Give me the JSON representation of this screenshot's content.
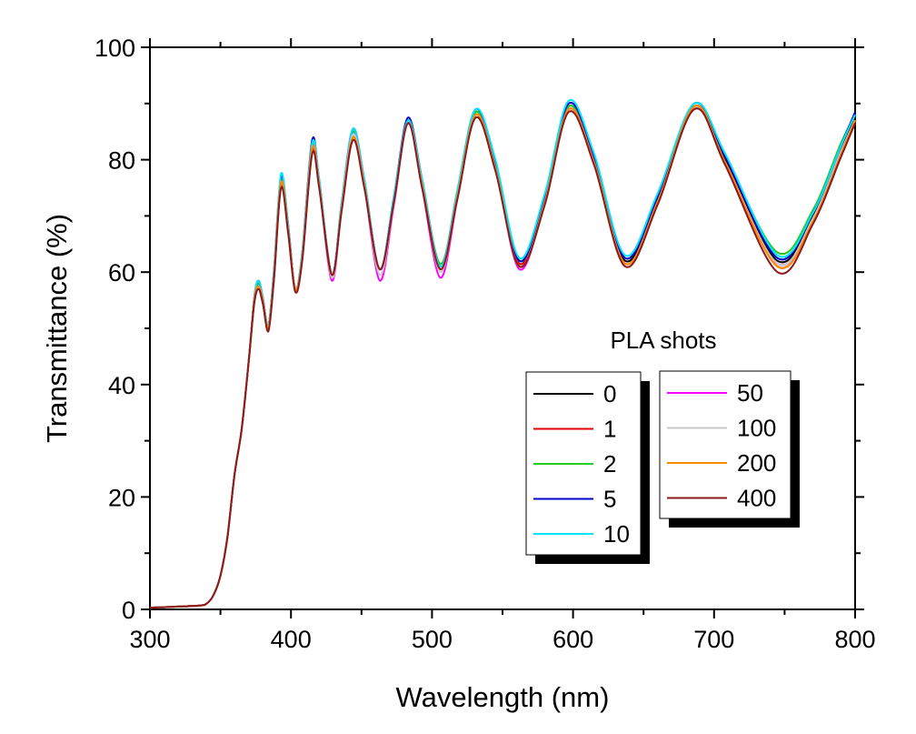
{
  "chart_data": {
    "type": "line",
    "title": "",
    "xlabel": "Wavelength (nm)",
    "ylabel": "Transmittance (%)",
    "xlim": [
      300,
      800
    ],
    "ylim": [
      0,
      100
    ],
    "x_ticks": [
      300,
      400,
      500,
      600,
      700,
      800
    ],
    "y_ticks": [
      0,
      20,
      40,
      60,
      80,
      100
    ],
    "x_tick_labels": [
      "300",
      "400",
      "500",
      "600",
      "700",
      "800"
    ],
    "y_tick_labels": [
      "0",
      "20",
      "40",
      "60",
      "80",
      "100"
    ],
    "grid": false,
    "legend_title": "PLA shots",
    "legend_position": "lower-right",
    "x": [
      300,
      320,
      335,
      340,
      345,
      350,
      355,
      360,
      365,
      370,
      374,
      377,
      380,
      384,
      388,
      393,
      398,
      403,
      408,
      415,
      420,
      429,
      436,
      444,
      452,
      463,
      473,
      483,
      493,
      506,
      518,
      531,
      545,
      562,
      580,
      597,
      615,
      637,
      660,
      686,
      708,
      745,
      770,
      790,
      800
    ],
    "series": [
      {
        "name": "0",
        "color": "#000000",
        "values": [
          0.3,
          0.5,
          0.7,
          1.0,
          2.5,
          6.0,
          13.0,
          24.0,
          32.0,
          44.0,
          55.0,
          58.0,
          55.0,
          50.5,
          60.0,
          76.0,
          68.0,
          57.0,
          63.0,
          82.5,
          76.0,
          59.5,
          72.0,
          85.0,
          76.0,
          60.5,
          73.0,
          87.0,
          76.0,
          61.0,
          74.0,
          88.5,
          79.0,
          61.5,
          73.0,
          89.5,
          80.0,
          62.0,
          73.0,
          89.5,
          80.0,
          62.0,
          70.0,
          82.0,
          88.0
        ]
      },
      {
        "name": "1",
        "color": "#e00000",
        "values": [
          0.3,
          0.5,
          0.7,
          1.0,
          2.5,
          6.0,
          13.0,
          24.0,
          32.0,
          44.0,
          54.5,
          57.0,
          54.5,
          50.0,
          59.0,
          75.5,
          67.0,
          57.0,
          62.5,
          81.5,
          75.5,
          59.5,
          71.5,
          84.0,
          75.5,
          60.5,
          72.5,
          86.5,
          75.5,
          60.5,
          73.5,
          88.0,
          78.5,
          61.5,
          72.5,
          89.0,
          79.5,
          61.5,
          72.5,
          89.0,
          79.5,
          61.0,
          69.0,
          81.0,
          87.0
        ]
      },
      {
        "name": "2",
        "color": "#22cc22",
        "values": [
          0.3,
          0.5,
          0.7,
          1.0,
          2.5,
          6.0,
          13.0,
          24.0,
          32.0,
          44.0,
          55.0,
          58.0,
          55.0,
          50.5,
          60.0,
          76.5,
          68.0,
          57.0,
          63.0,
          82.5,
          76.0,
          59.5,
          72.0,
          85.0,
          76.0,
          60.5,
          73.0,
          86.5,
          76.0,
          61.5,
          74.0,
          88.5,
          79.0,
          62.0,
          73.0,
          89.5,
          80.0,
          62.5,
          73.5,
          89.5,
          80.5,
          63.5,
          71.0,
          83.0,
          88.0
        ]
      },
      {
        "name": "5",
        "color": "#0000cc",
        "values": [
          0.3,
          0.5,
          0.7,
          1.0,
          2.5,
          6.0,
          13.0,
          24.0,
          32.0,
          44.0,
          55.5,
          58.5,
          55.5,
          50.5,
          60.5,
          77.0,
          68.5,
          57.0,
          63.5,
          83.5,
          76.5,
          59.5,
          72.5,
          85.5,
          76.5,
          60.5,
          73.5,
          87.5,
          76.5,
          61.0,
          74.5,
          89.0,
          79.5,
          62.0,
          73.5,
          90.0,
          80.5,
          62.5,
          73.5,
          90.0,
          80.5,
          62.5,
          70.5,
          82.5,
          88.5
        ]
      },
      {
        "name": "10",
        "color": "#00e5ff",
        "values": [
          0.3,
          0.5,
          0.7,
          1.0,
          2.5,
          6.0,
          13.0,
          24.0,
          32.0,
          44.0,
          55.5,
          58.5,
          55.5,
          50.5,
          60.5,
          77.5,
          68.5,
          57.0,
          63.5,
          83.0,
          76.5,
          59.5,
          72.5,
          85.5,
          76.5,
          60.5,
          73.5,
          87.0,
          76.5,
          61.0,
          74.5,
          89.0,
          80.0,
          62.5,
          74.0,
          90.5,
          81.0,
          63.0,
          74.0,
          90.0,
          81.0,
          63.0,
          70.5,
          82.5,
          88.0
        ]
      },
      {
        "name": "50",
        "color": "#ff00ff",
        "values": [
          0.3,
          0.5,
          0.7,
          1.0,
          2.5,
          6.0,
          13.0,
          24.0,
          32.0,
          44.0,
          55.0,
          57.5,
          55.0,
          50.0,
          59.5,
          76.0,
          67.5,
          57.0,
          62.5,
          82.0,
          75.5,
          58.5,
          71.5,
          84.5,
          75.5,
          58.5,
          72.0,
          86.5,
          75.0,
          59.0,
          73.0,
          88.0,
          78.5,
          60.5,
          72.5,
          89.0,
          79.5,
          61.5,
          72.5,
          89.0,
          79.5,
          61.5,
          69.5,
          81.5,
          87.0
        ]
      },
      {
        "name": "100",
        "color": "#c8c8c8",
        "values": [
          0.3,
          0.5,
          0.7,
          1.0,
          2.5,
          6.0,
          13.0,
          24.0,
          32.0,
          44.0,
          55.0,
          57.5,
          55.0,
          50.0,
          59.5,
          76.0,
          67.5,
          57.0,
          62.5,
          82.0,
          75.5,
          59.0,
          71.5,
          84.5,
          75.5,
          59.5,
          72.5,
          86.5,
          75.5,
          60.0,
          73.5,
          88.0,
          78.5,
          61.0,
          72.5,
          89.0,
          79.5,
          61.5,
          72.5,
          89.0,
          79.5,
          61.5,
          69.5,
          81.5,
          87.0
        ]
      },
      {
        "name": "200",
        "color": "#ff8800",
        "values": [
          0.3,
          0.5,
          0.7,
          1.0,
          2.5,
          6.0,
          13.0,
          24.0,
          32.0,
          44.0,
          55.0,
          57.5,
          55.0,
          50.0,
          59.5,
          76.0,
          67.5,
          57.0,
          62.5,
          82.0,
          75.5,
          59.5,
          71.5,
          84.0,
          75.5,
          60.5,
          72.5,
          86.5,
          75.5,
          60.5,
          73.5,
          88.0,
          78.5,
          61.0,
          72.5,
          89.0,
          79.5,
          61.5,
          72.5,
          89.5,
          79.5,
          61.0,
          69.0,
          81.0,
          87.0
        ]
      },
      {
        "name": "400",
        "color": "#8b1a1a",
        "values": [
          0.3,
          0.5,
          0.7,
          1.0,
          2.5,
          6.0,
          13.0,
          24.0,
          32.0,
          44.0,
          54.5,
          57.0,
          54.5,
          49.5,
          59.0,
          75.0,
          67.0,
          56.5,
          62.0,
          81.0,
          75.0,
          59.5,
          71.0,
          83.5,
          75.0,
          60.5,
          72.5,
          86.5,
          75.0,
          60.5,
          73.0,
          87.5,
          78.0,
          61.0,
          72.0,
          88.5,
          79.0,
          61.0,
          72.0,
          89.0,
          79.0,
          60.0,
          68.5,
          80.5,
          86.5
        ]
      }
    ]
  }
}
